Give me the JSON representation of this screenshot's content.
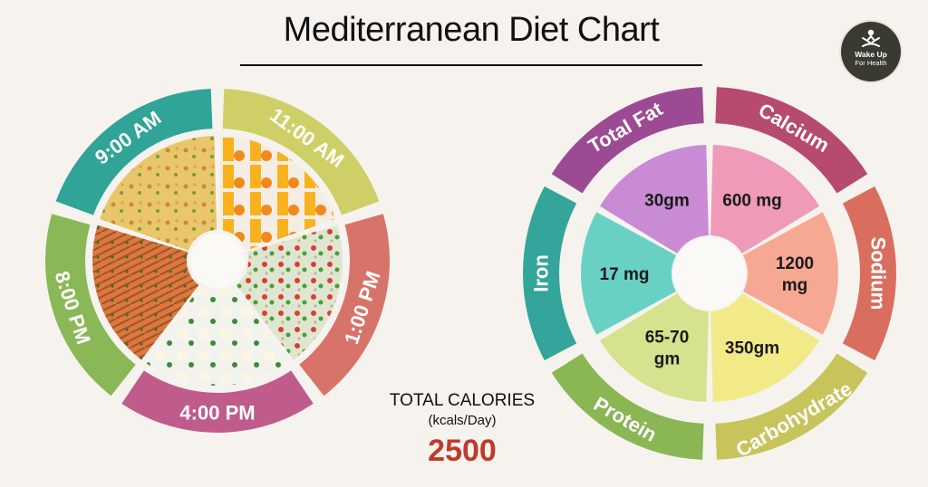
{
  "title": "Mediterranean Diet Chart",
  "logo": {
    "line1": "Wake Up",
    "line2": "For Health"
  },
  "meal_times": [
    "9:00 AM",
    "11:00 AM",
    "1:00 PM",
    "4:00 PM",
    "8:00 PM"
  ],
  "meal_colors": [
    "#2fa497",
    "#cfcf68",
    "#d8736a",
    "#bf5c8c",
    "#8bb856"
  ],
  "meal_images": [
    "frittata-image",
    "orange-juice-image",
    "salad-bowl-image",
    "feta-cheese-image",
    "salmon-image"
  ],
  "nutrients": [
    {
      "name": "Total Fat",
      "value": "30gm",
      "ring_color": "#9b4a93",
      "slice_color": "#c98bd3"
    },
    {
      "name": "Calcium",
      "value": "600 mg",
      "ring_color": "#b74a6f",
      "slice_color": "#ef9ab9"
    },
    {
      "name": "Sodium",
      "value": "1200 mg",
      "ring_color": "#d96e5f",
      "slice_color": "#f7a893"
    },
    {
      "name": "Carbohydrate",
      "value": "350gm",
      "ring_color": "#c7c45c",
      "slice_color": "#f2ea86"
    },
    {
      "name": "Protein",
      "value": "65-70 gm",
      "ring_color": "#8ab654",
      "slice_color": "#d6e28e"
    },
    {
      "name": "Iron",
      "value": "17 mg",
      "ring_color": "#33a59a",
      "slice_color": "#69d1c4"
    }
  ],
  "calories": {
    "title": "TOTAL CALORIES",
    "unit": "(kcals/Day)",
    "value": "2500"
  }
}
